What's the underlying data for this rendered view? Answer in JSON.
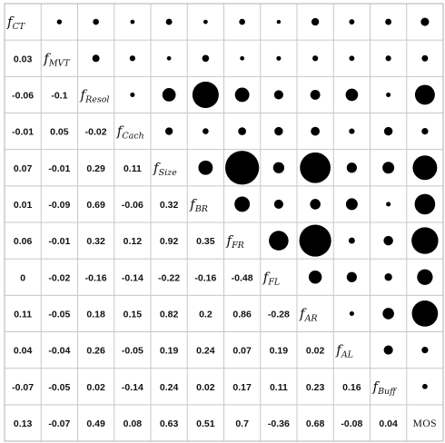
{
  "chart_data": {
    "type": "heatmap",
    "variables": [
      {
        "main": "f",
        "sub": "CT"
      },
      {
        "main": "f",
        "sub": "MVT"
      },
      {
        "main": "f",
        "sub": "Resol"
      },
      {
        "main": "f",
        "sub": "Cach"
      },
      {
        "main": "f",
        "sub": "Size"
      },
      {
        "main": "f",
        "sub": "BR"
      },
      {
        "main": "f",
        "sub": "FR"
      },
      {
        "main": "f",
        "sub": "FL"
      },
      {
        "main": "f",
        "sub": "AR"
      },
      {
        "main": "f",
        "sub": "AL"
      },
      {
        "main": "f",
        "sub": "Buff"
      },
      {
        "main": "MOS",
        "sub": ""
      }
    ],
    "lower_triangle_labels": [
      [],
      [
        "0.03"
      ],
      [
        "-0.06",
        "-0.1"
      ],
      [
        "-0.01",
        "0.05",
        "-0.02"
      ],
      [
        "0.07",
        "-0.01",
        "0.29",
        "0.11"
      ],
      [
        "0.01",
        "-0.09",
        "0.69",
        "-0.06",
        "0.32"
      ],
      [
        "0.06",
        "-0.01",
        "0.32",
        "0.12",
        "0.92",
        "0.35"
      ],
      [
        "0",
        "-0.02",
        "-0.16",
        "-0.14",
        "-0.22",
        "-0.16",
        "-0.48"
      ],
      [
        "0.11",
        "-0.05",
        "0.18",
        "0.15",
        "0.82",
        "0.2",
        "0.86",
        "-0.28"
      ],
      [
        "0.04",
        "-0.04",
        "0.26",
        "-0.05",
        "0.19",
        "0.24",
        "0.07",
        "0.19",
        "0.02"
      ],
      [
        "-0.07",
        "-0.05",
        "0.02",
        "-0.14",
        "0.24",
        "0.02",
        "0.17",
        "0.11",
        "0.23",
        "0.16"
      ],
      [
        "0.13",
        "-0.07",
        "0.49",
        "0.08",
        "0.63",
        "0.51",
        "0.7",
        "-0.36",
        "0.68",
        "-0.08",
        "0.04"
      ]
    ],
    "upper_triangle": "circles sized by |correlation|",
    "grid": true
  }
}
